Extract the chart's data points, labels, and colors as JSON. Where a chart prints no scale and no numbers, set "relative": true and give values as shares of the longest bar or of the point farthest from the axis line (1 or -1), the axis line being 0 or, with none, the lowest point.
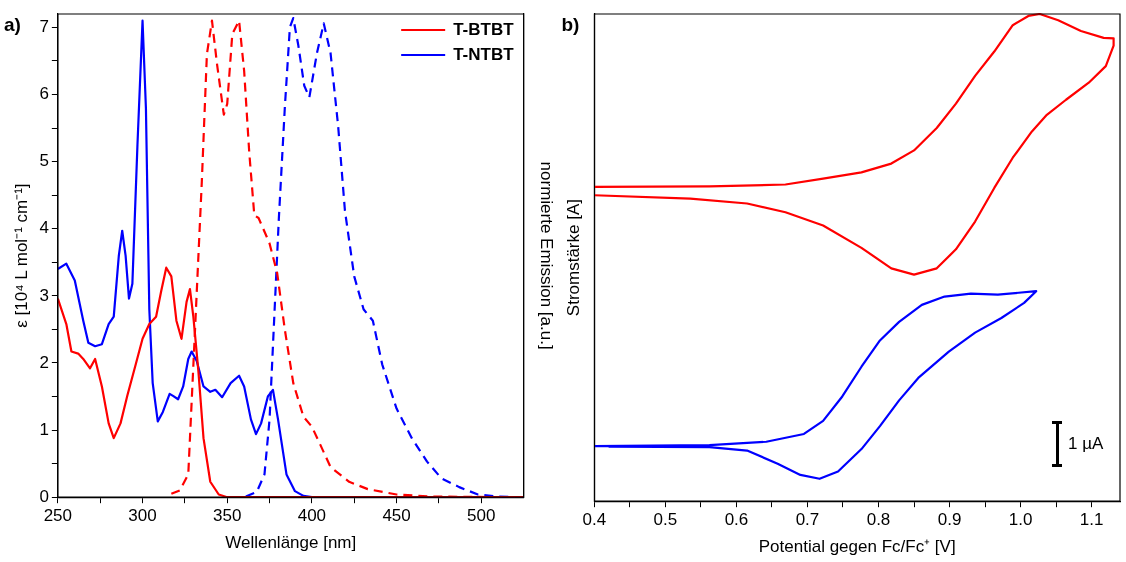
{
  "chart_data": [
    {
      "type": "line",
      "title": "a)",
      "xlabel": "Wellenlänge [nm]",
      "ylabel": "ε [10⁴ L mol⁻¹ cm⁻¹]",
      "y2label": "normierte Emission [a.u.]",
      "xlim": [
        250,
        525
      ],
      "xticks": [
        250,
        {
          "value": 275,
          "label": null
        },
        300,
        {
          "value": 325,
          "label": null
        },
        350,
        {
          "value": 375,
          "label": null
        },
        400,
        {
          "value": 425,
          "label": null
        },
        450,
        {
          "value": 475,
          "label": null
        },
        500
      ],
      "ylim": [
        0,
        7.2
      ],
      "yticks": [
        0,
        {
          "value": 0.5,
          "label": null
        },
        1,
        {
          "value": 1.5,
          "label": null
        },
        2,
        {
          "value": 2.5,
          "label": null
        },
        3,
        {
          "value": 3.5,
          "label": null
        },
        4,
        {
          "value": 4.5,
          "label": null
        },
        5,
        {
          "value": 5.5,
          "label": null
        },
        6,
        {
          "value": 6.5,
          "label": null
        },
        7
      ],
      "grid": false,
      "legend": "top right",
      "marker": "none",
      "series": [
        {
          "name": "T-BTBT",
          "color": "#ff0000",
          "line_style": "solid",
          "x": [
            250,
            255,
            258,
            262,
            265,
            269,
            272,
            276,
            280,
            283,
            287,
            291,
            296,
            300,
            304,
            308,
            311,
            314,
            317,
            320,
            323,
            326,
            328,
            330,
            333,
            336,
            340,
            345,
            350,
            525
          ],
          "values": [
            2.96,
            2.58,
            2.17,
            2.14,
            2.06,
            1.92,
            2.06,
            1.65,
            1.1,
            0.88,
            1.1,
            1.51,
            1.98,
            2.36,
            2.58,
            2.69,
            3.07,
            3.42,
            3.29,
            2.63,
            2.36,
            2.91,
            3.1,
            2.69,
            1.87,
            0.88,
            0.23,
            0.04,
            0,
            0
          ]
        },
        {
          "name": "T-NTBT",
          "color": "#0000ff",
          "line_style": "solid",
          "x": [
            250,
            255,
            260,
            265,
            268,
            272,
            276,
            280,
            283,
            286,
            288,
            290,
            292,
            294,
            297,
            300,
            302,
            304,
            306,
            309,
            312,
            316,
            318,
            321,
            324,
            327,
            329,
            332,
            336,
            340,
            343,
            347,
            352,
            357,
            360,
            364,
            367,
            370,
            374,
            377,
            380,
            385,
            390,
            395,
            400,
            525
          ],
          "values": [
            3.4,
            3.48,
            3.23,
            2.63,
            2.3,
            2.25,
            2.28,
            2.58,
            2.69,
            3.6,
            3.97,
            3.6,
            2.96,
            3.18,
            5.25,
            7.1,
            5.8,
            2.8,
            1.7,
            1.13,
            1.27,
            1.54,
            1.51,
            1.46,
            1.65,
            2.06,
            2.17,
            2.03,
            1.65,
            1.57,
            1.6,
            1.49,
            1.7,
            1.81,
            1.65,
            1.16,
            0.94,
            1.1,
            1.5,
            1.6,
            1.16,
            0.34,
            0.09,
            0.02,
            0,
            0
          ]
        },
        {
          "color": "#ff0000",
          "line_style": "dashed",
          "x": [
            317,
            322,
            327,
            331,
            335,
            338,
            341,
            344,
            348,
            350,
            353,
            357,
            360,
            363,
            366,
            368.5,
            373,
            375,
            379.5,
            384,
            389,
            395,
            400,
            405,
            411,
            422,
            433,
            450,
            470,
            520
          ],
          "values": [
            0.05,
            0.1,
            0.34,
            2.5,
            4.7,
            6.6,
            7.1,
            6.45,
            5.7,
            5.86,
            6.9,
            7.1,
            6.35,
            5.14,
            4.2,
            4.16,
            3.9,
            3.78,
            3.34,
            2.5,
            1.7,
            1.2,
            1.05,
            0.78,
            0.45,
            0.23,
            0.12,
            0.04,
            0.01,
            0
          ]
        },
        {
          "color": "#0000ff",
          "line_style": "dashed",
          "x": [
            361,
            367.5,
            372,
            375,
            378,
            380.5,
            384,
            387,
            389,
            392,
            395.5,
            398.5,
            403,
            407,
            411,
            415.5,
            419.5,
            425,
            430.5,
            436,
            441.5,
            450,
            459,
            468,
            476.5,
            487,
            498,
            509,
            520
          ],
          "values": [
            0.01,
            0.08,
            0.34,
            1.16,
            2.8,
            4.16,
            5.8,
            7.0,
            7.14,
            6.73,
            6.13,
            5.96,
            6.62,
            7.06,
            6.62,
            5.53,
            4.27,
            3.29,
            2.8,
            2.63,
            1.98,
            1.32,
            0.88,
            0.53,
            0.28,
            0.15,
            0.04,
            0.01,
            0
          ]
        }
      ]
    },
    {
      "type": "line",
      "title": "b)",
      "xlabel": "Potential gegen Fc/Fc⁺ [V]",
      "ylabel": "Stromstärke [A]",
      "relative": true,
      "tick_labels": "x",
      "xlim": [
        0.4,
        1.14
      ],
      "xticks": [
        0.4,
        {
          "value": 0.45,
          "label": null
        },
        0.5,
        {
          "value": 0.55,
          "label": null
        },
        0.6,
        {
          "value": 0.65,
          "label": null
        },
        0.7,
        {
          "value": 0.75,
          "label": null
        },
        0.8,
        {
          "value": 0.85,
          "label": null
        },
        0.9,
        {
          "value": 0.95,
          "label": null
        },
        {
          "value": 1.0,
          "label": "1.0"
        },
        {
          "value": 1.05,
          "label": null
        },
        1.1
      ],
      "grid": false,
      "legend": false,
      "marker": "none",
      "annotations": [
        "1 µA"
      ],
      "series": [
        {
          "color": "#ff0000",
          "x": [
            0.4,
            0.562,
            0.669,
            0.722,
            0.776,
            0.818,
            0.85,
            0.882,
            0.909,
            0.936,
            0.963,
            0.989,
            1.011,
            1.027,
            1.053,
            1.085,
            1.117,
            1.131,
            1.131,
            1.12,
            1.096,
            1.064,
            1.037,
            1.016,
            0.989,
            0.963,
            0.936,
            0.909,
            0.882,
            0.85,
            0.818,
            0.776,
            0.722,
            0.669,
            0.615,
            0.535,
            0.4
          ],
          "values": [
            0.645,
            0.646,
            0.65,
            0.662,
            0.675,
            0.693,
            0.72,
            0.766,
            0.816,
            0.873,
            0.923,
            0.977,
            0.996,
            1,
            0.987,
            0.965,
            0.951,
            0.95,
            0.935,
            0.893,
            0.859,
            0.824,
            0.793,
            0.759,
            0.705,
            0.643,
            0.574,
            0.517,
            0.478,
            0.465,
            0.478,
            0.52,
            0.566,
            0.593,
            0.611,
            0.621,
            0.628
          ]
        },
        {
          "color": "#0000ff",
          "x": [
            0.4,
            0.562,
            0.642,
            0.695,
            0.722,
            0.749,
            0.776,
            0.802,
            0.829,
            0.861,
            0.893,
            0.93,
            0.968,
            1.022,
            1.005,
            0.973,
            0.936,
            0.899,
            0.856,
            0.829,
            0.802,
            0.776,
            0.743,
            0.717,
            0.69,
            0.658,
            0.615,
            0.562,
            0.42
          ],
          "values": [
            0.113,
            0.115,
            0.122,
            0.138,
            0.165,
            0.215,
            0.276,
            0.33,
            0.368,
            0.403,
            0.42,
            0.426,
            0.424,
            0.431,
            0.407,
            0.376,
            0.346,
            0.307,
            0.253,
            0.207,
            0.154,
            0.107,
            0.061,
            0.046,
            0.054,
            0.077,
            0.104,
            0.111,
            0.112
          ]
        }
      ]
    }
  ]
}
